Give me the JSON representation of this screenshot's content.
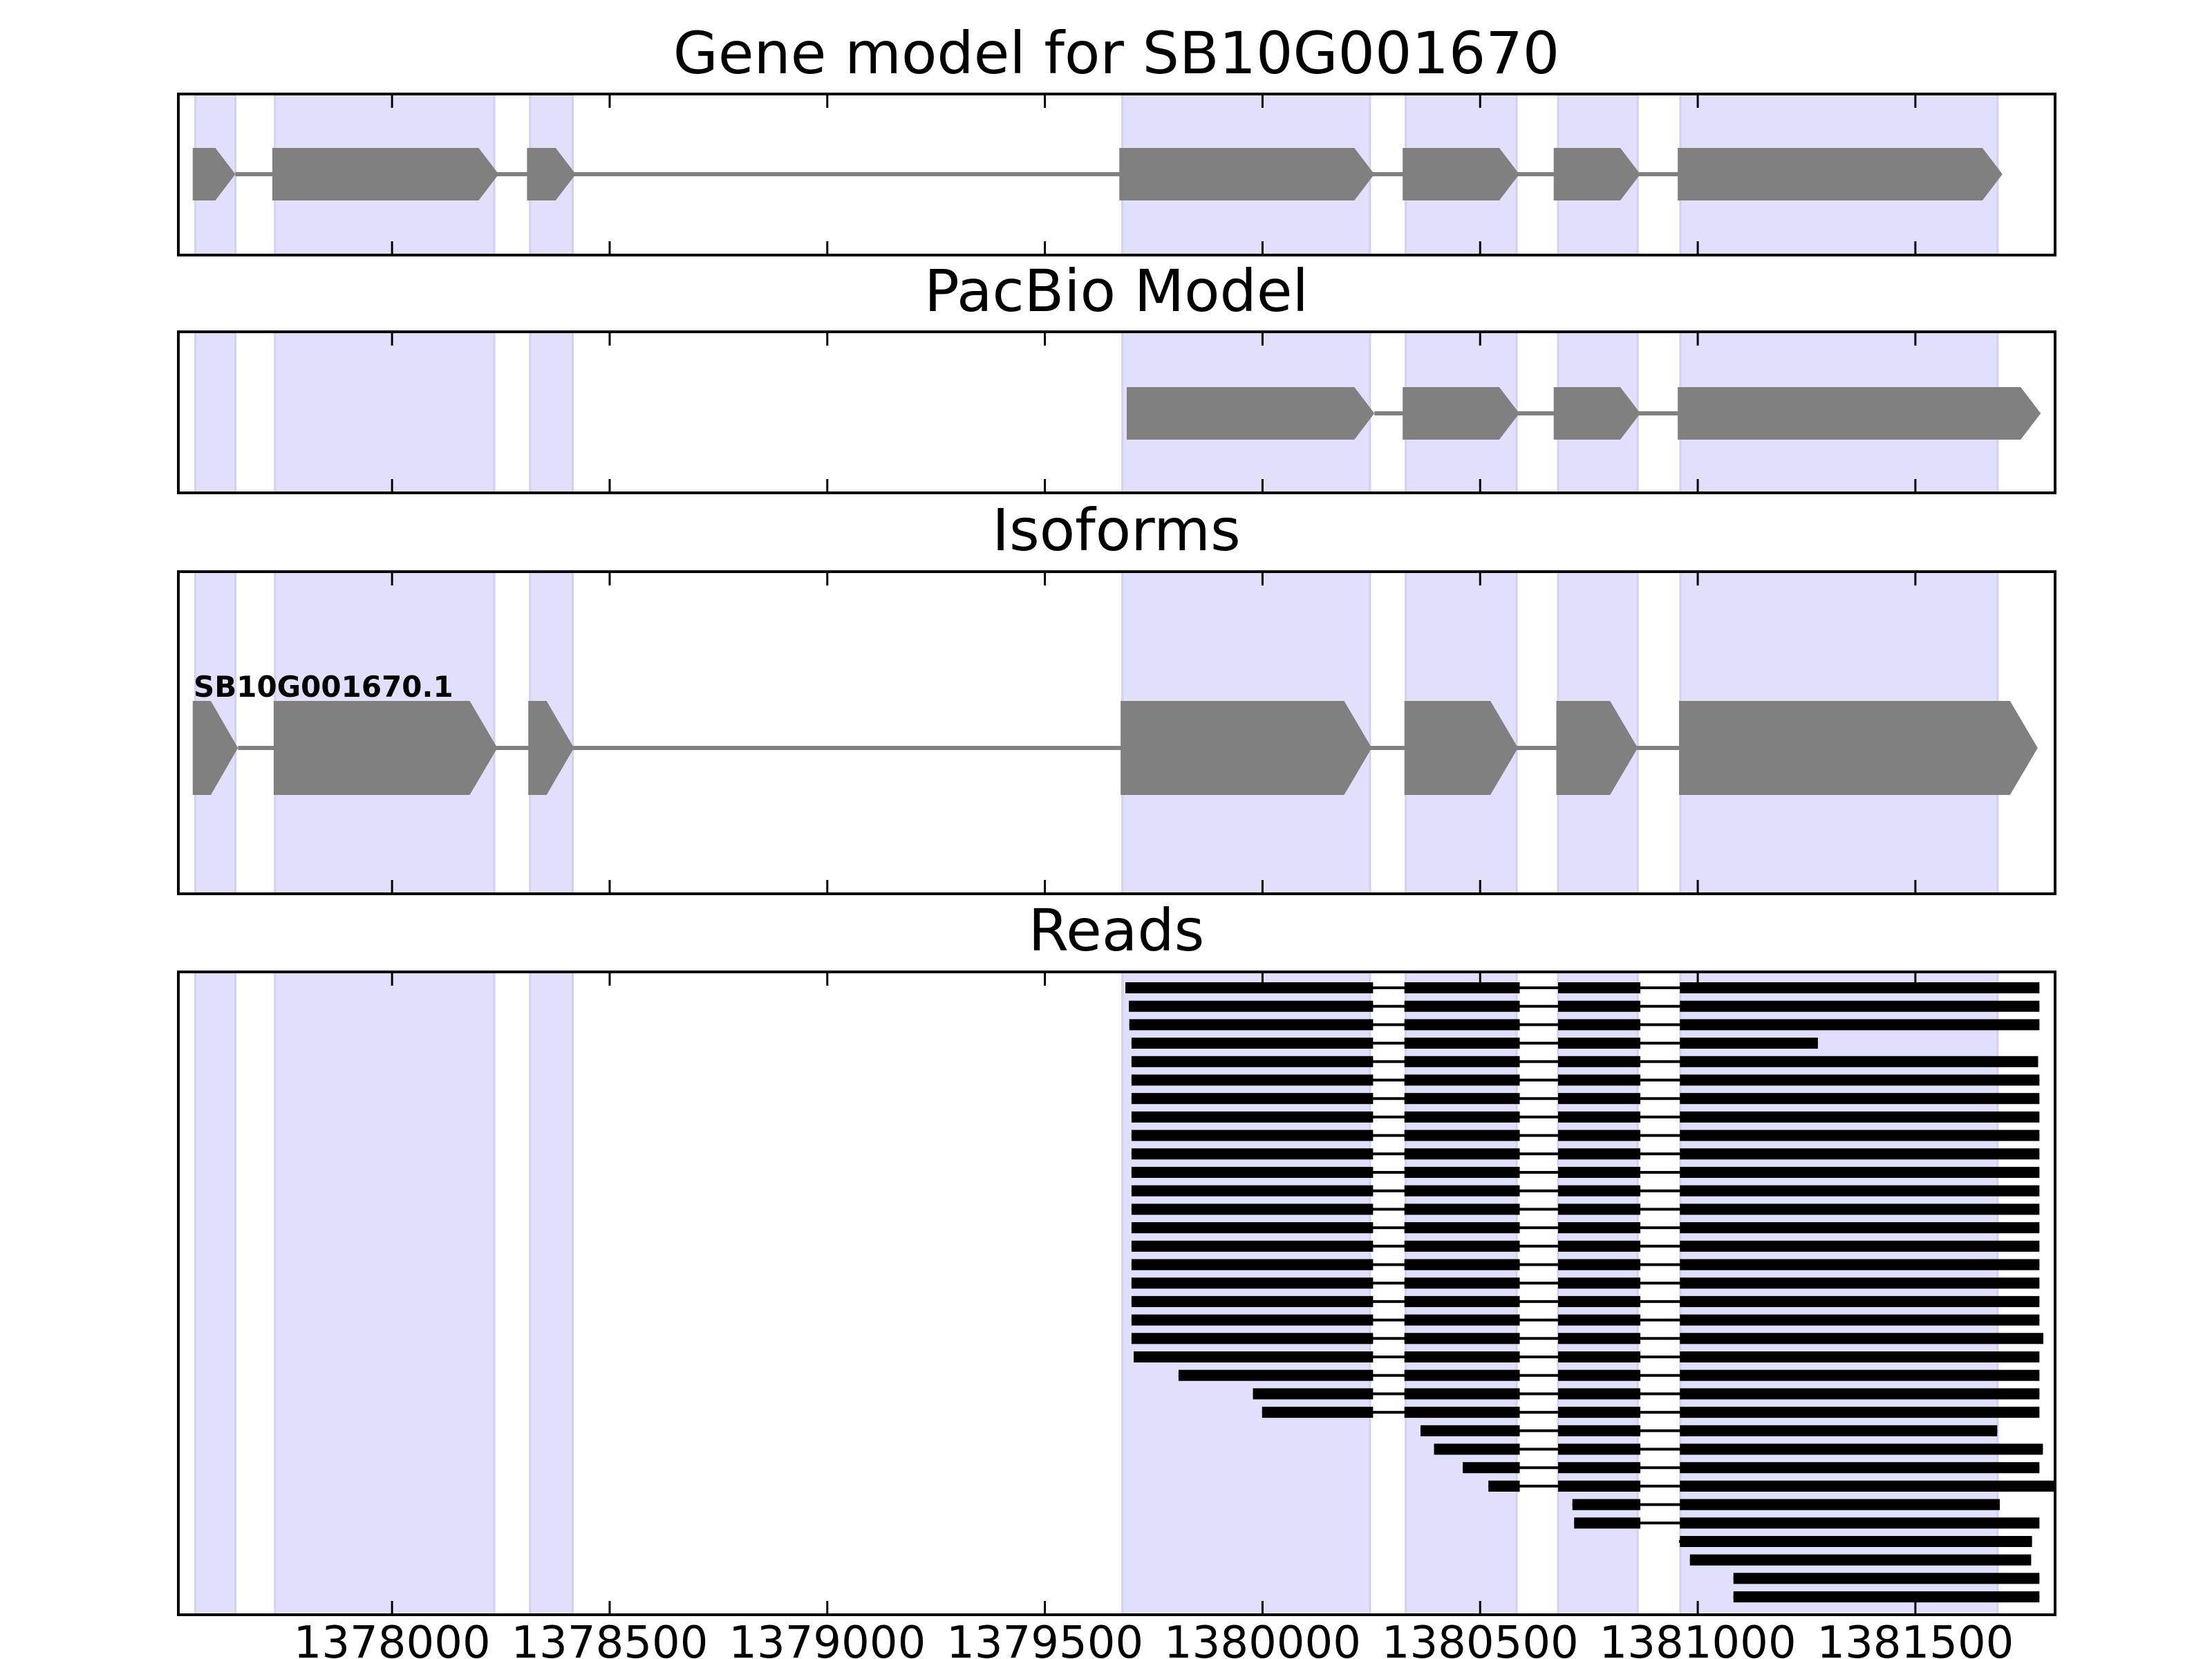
{
  "chart_data": {
    "type": "gene-track",
    "xlim": [
      1377509,
      1381821
    ],
    "xticks": [
      1378000,
      1378500,
      1379000,
      1379500,
      1380000,
      1380500,
      1381000,
      1381500
    ],
    "shaded_regions": [
      [
        1377548,
        1377640
      ],
      [
        1377731,
        1378235
      ],
      [
        1378317,
        1378415
      ],
      [
        1379678,
        1380247
      ],
      [
        1380329,
        1380584
      ],
      [
        1380679,
        1380862
      ],
      [
        1380960,
        1381689
      ]
    ],
    "colors": {
      "shade": "#e0e0fc",
      "shade_edge": "#d2d2f0",
      "exon": "#808080",
      "read": "#000000"
    },
    "panels": [
      {
        "title": "Gene model for SB10G001670",
        "strand": "+",
        "exons": [
          [
            1377542,
            1377640
          ],
          [
            1377725,
            1378245
          ],
          [
            1378310,
            1378422
          ],
          [
            1379671,
            1380257
          ],
          [
            1380322,
            1380590
          ],
          [
            1380669,
            1380868
          ],
          [
            1380954,
            1381700
          ]
        ]
      },
      {
        "title": "PacBio Model",
        "strand": "+",
        "exons": [
          [
            1379688,
            1380257
          ],
          [
            1380322,
            1380590
          ],
          [
            1380669,
            1380868
          ],
          [
            1380954,
            1381788
          ]
        ]
      },
      {
        "title": "Isoforms",
        "strand": "+",
        "isoform_label": "SB10G001670.1",
        "exons": [
          [
            1377542,
            1377646
          ],
          [
            1377728,
            1378242
          ],
          [
            1378313,
            1378418
          ],
          [
            1379674,
            1380251
          ],
          [
            1380326,
            1380587
          ],
          [
            1380675,
            1380862
          ],
          [
            1380957,
            1381781
          ]
        ]
      },
      {
        "title": "Reads",
        "read_exon_blocks": [
          [
            null,
            1380254
          ],
          [
            1380326,
            1380591
          ],
          [
            1380679,
            1380868
          ],
          [
            1380959,
            null
          ]
        ],
        "reads": [
          [
            1379685,
            1381785
          ],
          [
            1379693,
            1381785
          ],
          [
            1379694,
            1381785
          ],
          [
            1379699,
            1381276
          ],
          [
            1379699,
            1381782
          ],
          [
            1379699,
            1381785
          ],
          [
            1379699,
            1381785
          ],
          [
            1379699,
            1381785
          ],
          [
            1379699,
            1381785
          ],
          [
            1379699,
            1381785
          ],
          [
            1379699,
            1381785
          ],
          [
            1379699,
            1381785
          ],
          [
            1379699,
            1381785
          ],
          [
            1379699,
            1381785
          ],
          [
            1379699,
            1381785
          ],
          [
            1379699,
            1381785
          ],
          [
            1379699,
            1381785
          ],
          [
            1379699,
            1381785
          ],
          [
            1379699,
            1381785
          ],
          [
            1379699,
            1381794
          ],
          [
            1379704,
            1381785
          ],
          [
            1379807,
            1381785
          ],
          [
            1379978,
            1381785
          ],
          [
            1379999,
            1381785
          ],
          [
            1380363,
            1381688
          ],
          [
            1380394,
            1381793
          ],
          [
            1380460,
            1381785
          ],
          [
            1380519,
            1381821
          ],
          [
            1380712,
            1381694
          ],
          [
            1380716,
            1381785
          ],
          [
            1380957,
            1381768
          ],
          [
            1380982,
            1381766
          ],
          [
            1381082,
            1381785
          ],
          [
            1381082,
            1381785
          ]
        ]
      }
    ]
  }
}
